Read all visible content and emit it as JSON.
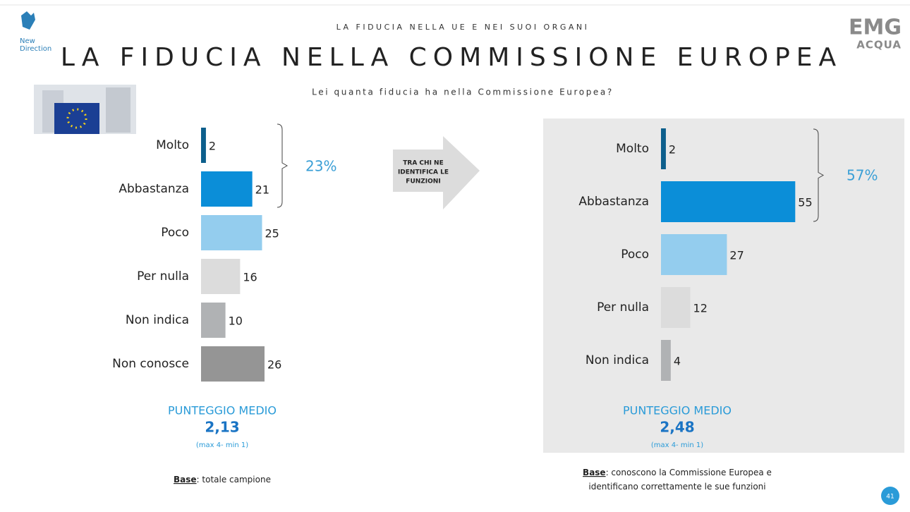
{
  "slide": {
    "section": "LA FIDUCIA NELLA UE E NEI SUOI ORGANI",
    "title": "LA FIDUCIA NELLA COMMISSIONE EUROPEA",
    "question": "Lei quanta fiducia ha nella Commissione Europea?",
    "arrow_text": [
      "TRA CHI  NE",
      "IDENTIFICA LE",
      "FUNZIONI"
    ],
    "logo_left": [
      "New",
      "Direction"
    ],
    "logo_right": [
      "EMG",
      "ACQUA"
    ],
    "page_number": "41"
  },
  "chart_data": [
    {
      "type": "bar",
      "categories": [
        "Molto",
        "Abbastanza",
        "Poco",
        "Per nulla",
        "Non indica",
        "Non conosce"
      ],
      "values": [
        2,
        21,
        25,
        16,
        10,
        26
      ],
      "colors": [
        "#0d5f8c",
        "#0b8ed8",
        "#94cdee",
        "#dcdcdc",
        "#b0b2b4",
        "#959595"
      ],
      "bracket_label": "23%",
      "score_title": "PUNTEGGIO MEDIO",
      "score": "2,13",
      "score_note": "(max 4- min 1)",
      "base_label": "Base",
      "base_text": [
        ": totale campione"
      ]
    },
    {
      "type": "bar",
      "categories": [
        "Molto",
        "Abbastanza",
        "Poco",
        "Per nulla",
        "Non indica"
      ],
      "values": [
        2,
        55,
        27,
        12,
        4
      ],
      "colors": [
        "#0d5f8c",
        "#0b8ed8",
        "#94cdee",
        "#dcdcdc",
        "#b0b2b4"
      ],
      "bracket_label": "57%",
      "score_title": "PUNTEGGIO MEDIO",
      "score": "2,48",
      "score_note": "(max 4- min 1)",
      "base_label": "Base",
      "base_text": [
        ": conoscono la Commissione Europea e",
        "identificano correttamente le sue funzioni"
      ]
    }
  ]
}
